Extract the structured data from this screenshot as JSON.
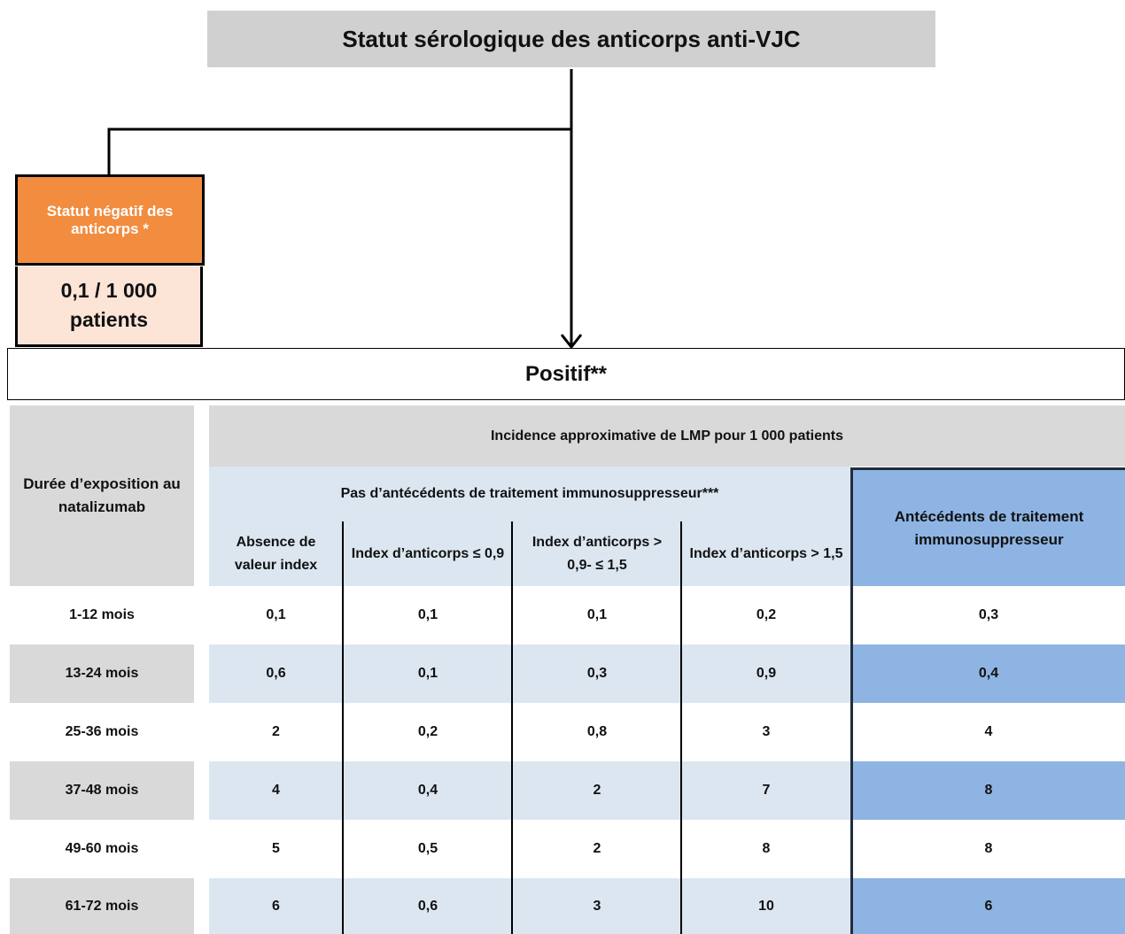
{
  "header": {
    "title": "Statut sérologique des anticorps anti-VJC"
  },
  "negative": {
    "label": "Statut négatif des anticorps *",
    "value": "0,1 / 1 000 patients"
  },
  "positive": {
    "label": "Positif**"
  },
  "table": {
    "row_header": "Durée d’exposition au natalizumab",
    "top_header": "Incidence approximative de LMP pour 1 000 patients",
    "group_header": "Pas d’antécédents de traitement immunosuppresseur***",
    "columns": [
      "Absence de valeur index",
      "Index d’anticorps ≤ 0,9",
      "Index d’anticorps > 0,9- ≤ 1,5",
      "Index d’anticorps > 1,5"
    ],
    "last_column": "Antécédents de traitement immunosuppresseur",
    "rows": [
      [
        "1-12 mois",
        "0,1",
        "0,1",
        "0,1",
        "0,2",
        "0,3"
      ],
      [
        "13-24 mois",
        "0,6",
        "0,1",
        "0,3",
        "0,9",
        "0,4"
      ],
      [
        "25-36 mois",
        "2",
        "0,2",
        "0,8",
        "3",
        "4"
      ],
      [
        "37-48 mois",
        "4",
        "0,4",
        "2",
        "7",
        "8"
      ],
      [
        "49-60 mois",
        "5",
        "0,5",
        "2",
        "8",
        "8"
      ],
      [
        "61-72 mois",
        "6",
        "0,6",
        "3",
        "10",
        "6"
      ]
    ]
  }
}
